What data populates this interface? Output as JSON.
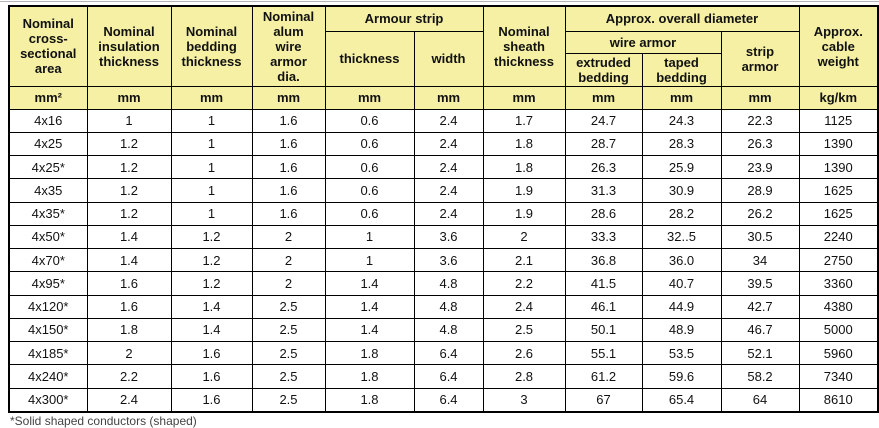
{
  "colors": {
    "header_bg": "#f5f0a3",
    "border": "#000000",
    "row_bg": "#ffffff",
    "text": "#111111"
  },
  "table": {
    "header": {
      "area": "Nominal\ncross-\nsectional\narea",
      "insulation": "Nominal\ninsulation\nthickness",
      "bedding": "Nominal\nbedding\nthickness",
      "alum": "Nominal\nalum\nwire\narmor\ndia.",
      "armour_strip_group": "Armour strip",
      "strip_thickness": "thickness",
      "strip_width": "width",
      "sheath": "Nominal\nsheath\nthickness",
      "overall_diameter_group": "Approx. overall diameter",
      "wire_armor_group": "wire armor",
      "extruded_bedding": "extruded\nbedding",
      "taped_bedding": "taped\nbedding",
      "strip_armor": "strip\narmor",
      "cable_weight": "Approx.\ncable\nweight"
    },
    "units": [
      "mm²",
      "mm",
      "mm",
      "mm",
      "mm",
      "mm",
      "mm",
      "mm",
      "mm",
      "mm",
      "kg/km"
    ],
    "rows": [
      [
        "4x16",
        "1",
        "1",
        "1.6",
        "0.6",
        "2.4",
        "1.7",
        "24.7",
        "24.3",
        "22.3",
        "1125"
      ],
      [
        "4x25",
        "1.2",
        "1",
        "1.6",
        "0.6",
        "2.4",
        "1.8",
        "28.7",
        "28.3",
        "26.3",
        "1390"
      ],
      [
        "4x25*",
        "1.2",
        "1",
        "1.6",
        "0.6",
        "2.4",
        "1.8",
        "26.3",
        "25.9",
        "23.9",
        "1390"
      ],
      [
        "4x35",
        "1.2",
        "1",
        "1.6",
        "0.6",
        "2.4",
        "1.9",
        "31.3",
        "30.9",
        "28.9",
        "1625"
      ],
      [
        "4x35*",
        "1.2",
        "1",
        "1.6",
        "0.6",
        "2.4",
        "1.9",
        "28.6",
        "28.2",
        "26.2",
        "1625"
      ],
      [
        "4x50*",
        "1.4",
        "1.2",
        "2",
        "1",
        "3.6",
        "2",
        "33.3",
        "32..5",
        "30.5",
        "2240"
      ],
      [
        "4x70*",
        "1.4",
        "1.2",
        "2",
        "1",
        "3.6",
        "2.1",
        "36.8",
        "36.0",
        "34",
        "2750"
      ],
      [
        "4x95*",
        "1.6",
        "1.2",
        "2",
        "1.4",
        "4.8",
        "2.2",
        "41.5",
        "40.7",
        "39.5",
        "3360"
      ],
      [
        "4x120*",
        "1.6",
        "1.4",
        "2.5",
        "1.4",
        "4.8",
        "2.4",
        "46.1",
        "44.9",
        "42.7",
        "4380"
      ],
      [
        "4x150*",
        "1.8",
        "1.4",
        "2.5",
        "1.4",
        "4.8",
        "2.5",
        "50.1",
        "48.9",
        "46.7",
        "5000"
      ],
      [
        "4x185*",
        "2",
        "1.6",
        "2.5",
        "1.8",
        "6.4",
        "2.6",
        "55.1",
        "53.5",
        "52.1",
        "5960"
      ],
      [
        "4x240*",
        "2.2",
        "1.6",
        "2.5",
        "1.8",
        "6.4",
        "2.8",
        "61.2",
        "59.6",
        "58.2",
        "7340"
      ],
      [
        "4x300*",
        "2.4",
        "1.6",
        "2.5",
        "1.8",
        "6.4",
        "3",
        "67",
        "65.4",
        "64",
        "8610"
      ]
    ]
  },
  "footnote": "*Solid shaped conductors (shaped)"
}
